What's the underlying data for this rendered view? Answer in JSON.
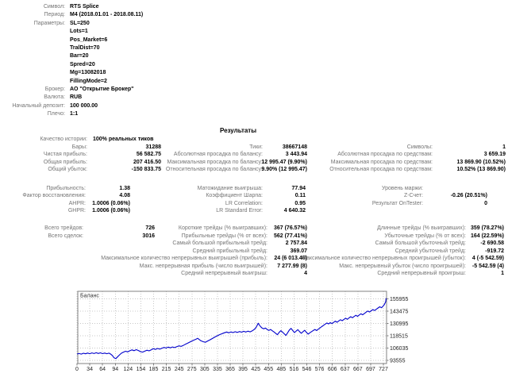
{
  "header": {
    "rows": [
      [
        "Символ:",
        "RTS Splice"
      ],
      [
        "Период:",
        "M4 (2018.01.01 - 2018.08.11)"
      ],
      [
        "Параметры:",
        "SL=250"
      ],
      [
        "",
        "Lots=1"
      ],
      [
        "",
        "Pos_Market=6"
      ],
      [
        "",
        "TralDist=70"
      ],
      [
        "",
        "Bar=20"
      ],
      [
        "",
        "Spred=20"
      ],
      [
        "",
        "Mg=13082018"
      ],
      [
        "",
        "FillingMode=2"
      ],
      [
        "Брокер:",
        "АО \"Открытие Брокер\""
      ],
      [
        "Валюта:",
        "RUB"
      ],
      [
        "Начальный депозит:",
        "100 000.00"
      ],
      [
        "Плечо:",
        "1:1"
      ]
    ]
  },
  "results": {
    "title": "Результаты",
    "sections": [
      {
        "rows": [
          {
            "l": [
              "Качество истории:",
              "100% реальных тиков",
              "left"
            ]
          },
          {
            "l": [
              "Бары:",
              "31288"
            ],
            "m": [
              "Тики:",
              "38667148"
            ],
            "r": [
              "Символы:",
              "1"
            ]
          },
          {
            "l": [
              "Чистая прибыль:",
              "56 582.75"
            ],
            "m": [
              "Абсолютная просадка по балансу:",
              "3 443.94"
            ],
            "r": [
              "Абсолютная просадка по средствам:",
              "3 659.19"
            ]
          },
          {
            "l": [
              "Общая прибыль:",
              "207 416.50"
            ],
            "m": [
              "Максимальная просадка по балансу:",
              "12 995.47 (9.90%)"
            ],
            "r": [
              "Максимальная просадка по средствам:",
              "13 869.90 (10.52%)"
            ]
          },
          {
            "l": [
              "Общий убыток:",
              "-150 833.75"
            ],
            "m": [
              "Относительная просадка по балансу:",
              "9.90% (12 995.47)"
            ],
            "r": [
              "Относительная просадка по средствам:",
              "10.52% (13 869.90)"
            ]
          }
        ]
      },
      {
        "rows": [
          {
            "l": [
              "Прибыльность:",
              "1.38"
            ],
            "m": [
              "Матожидание выигрыша:",
              "77.94"
            ],
            "r": [
              "Уровень маржи:",
              ""
            ]
          },
          {
            "l": [
              "Фактор восстановления:",
              "4.08"
            ],
            "m": [
              "Коэффициент Шарпа:",
              "0.11"
            ],
            "r": [
              "Z-Счет:",
              "-0.26 (20.51%)"
            ]
          },
          {
            "l": [
              "AHPR:",
              "1.0006 (0.06%)"
            ],
            "m": [
              "LR Correlation:",
              "0.95"
            ],
            "r": [
              "Результат OnTester:",
              "0"
            ]
          },
          {
            "l": [
              "GHPR:",
              "1.0006 (0.06%)"
            ],
            "m": [
              "LR Standard Error:",
              "4 640.32"
            ]
          }
        ]
      },
      {
        "rows": [
          {
            "l": [
              "Всего трейдов:",
              "726"
            ],
            "m": [
              "Короткие трейды (% выигравших):",
              "367 (76.57%)"
            ],
            "r": [
              "Длинные трейды (% выигравших):",
              "359 (78.27%)"
            ]
          },
          {
            "l": [
              "Всего сделок:",
              "3016"
            ],
            "m": [
              "Прибыльные трейды (% от всех):",
              "562 (77.41%)"
            ],
            "r": [
              "Убыточные трейды (% от всех):",
              "164 (22.59%)"
            ]
          },
          {
            "m": [
              "Самый большой прибыльный трейд:",
              "2 757.84"
            ],
            "r": [
              "Самый большой убыточный трейд:",
              "-2 690.58"
            ]
          },
          {
            "m": [
              "Средний прибыльный трейд:",
              "369.07"
            ],
            "r": [
              "Средний убыточный трейд:",
              "-919.72"
            ]
          },
          {
            "m": [
              "Максимальное количество непрерывных выигрышей (прибыль):",
              "24 (6 013.46)"
            ],
            "r": [
              "Максимальное количество непрерывных проигрышей (убыток):",
              "4 (-5 542.59)"
            ]
          },
          {
            "m": [
              "Макс. непрерывная прибыль (число выигрышей):",
              "7 277.99 (8)"
            ],
            "r": [
              "Макс. непрерывный убыток (число проигрышей):",
              "-5 542.59 (4)"
            ]
          },
          {
            "m": [
              "Средний непрерывный выигрыш:",
              "4"
            ],
            "r": [
              "Средний непрерывный проигрыш:",
              "1"
            ]
          }
        ]
      }
    ]
  },
  "chart_data": {
    "type": "line",
    "title": "Баланс",
    "legend": [
      "Баланс"
    ],
    "legend_position": "top-left-inside",
    "grid": true,
    "line_color": "#0000cc",
    "grid_color": "#c8c8c8",
    "border_color": "#808080",
    "x_ticks": [
      0,
      34,
      64,
      94,
      124,
      154,
      185,
      215,
      245,
      275,
      305,
      335,
      365,
      395,
      425,
      455,
      485,
      516,
      546,
      576,
      606,
      637,
      667,
      697,
      727
    ],
    "y_ticks": [
      93555,
      106035,
      118515,
      130995,
      143475,
      155955
    ],
    "xlim": [
      0,
      727
    ],
    "ylim": [
      90300,
      163600
    ],
    "series": [
      {
        "name": "Баланс",
        "points": [
          [
            0,
            100000
          ],
          [
            5,
            100500
          ],
          [
            10,
            99900
          ],
          [
            15,
            100800
          ],
          [
            20,
            100200
          ],
          [
            25,
            101000
          ],
          [
            30,
            100300
          ],
          [
            35,
            101100
          ],
          [
            40,
            100500
          ],
          [
            45,
            101300
          ],
          [
            50,
            100600
          ],
          [
            55,
            101200
          ],
          [
            60,
            100400
          ],
          [
            65,
            101000
          ],
          [
            70,
            100300
          ],
          [
            75,
            100900
          ],
          [
            79,
            99900
          ],
          [
            83,
            98500
          ],
          [
            87,
            96100
          ],
          [
            91,
            95300
          ],
          [
            95,
            97000
          ],
          [
            100,
            99200
          ],
          [
            104,
            100800
          ],
          [
            109,
            101900
          ],
          [
            114,
            102800
          ],
          [
            119,
            102200
          ],
          [
            124,
            103300
          ],
          [
            129,
            104200
          ],
          [
            134,
            103400
          ],
          [
            139,
            104400
          ],
          [
            144,
            103500
          ],
          [
            149,
            102400
          ],
          [
            154,
            101900
          ],
          [
            159,
            102900
          ],
          [
            164,
            103900
          ],
          [
            169,
            103200
          ],
          [
            174,
            104300
          ],
          [
            179,
            105400
          ],
          [
            184,
            104700
          ],
          [
            189,
            105600
          ],
          [
            194,
            104900
          ],
          [
            199,
            105800
          ],
          [
            204,
            106700
          ],
          [
            209,
            106000
          ],
          [
            214,
            107000
          ],
          [
            219,
            106300
          ],
          [
            224,
            107200
          ],
          [
            229,
            106500
          ],
          [
            234,
            107400
          ],
          [
            239,
            108300
          ],
          [
            244,
            107700
          ],
          [
            249,
            108700
          ],
          [
            254,
            109800
          ],
          [
            259,
            110900
          ],
          [
            264,
            112000
          ],
          [
            269,
            113100
          ],
          [
            274,
            114100
          ],
          [
            279,
            115000
          ],
          [
            283,
            115900
          ],
          [
            287,
            114600
          ],
          [
            291,
            113400
          ],
          [
            296,
            112500
          ],
          [
            301,
            111900
          ],
          [
            306,
            113000
          ],
          [
            311,
            114200
          ],
          [
            316,
            115400
          ],
          [
            321,
            116600
          ],
          [
            326,
            117800
          ],
          [
            331,
            118900
          ],
          [
            336,
            119900
          ],
          [
            341,
            120800
          ],
          [
            346,
            121600
          ],
          [
            351,
            122300
          ],
          [
            356,
            121500
          ],
          [
            361,
            122400
          ],
          [
            366,
            121700
          ],
          [
            371,
            122600
          ],
          [
            376,
            121900
          ],
          [
            381,
            122800
          ],
          [
            386,
            122100
          ],
          [
            391,
            123000
          ],
          [
            396,
            122300
          ],
          [
            401,
            123200
          ],
          [
            406,
            122500
          ],
          [
            411,
            123500
          ],
          [
            415,
            124700
          ],
          [
            419,
            126300
          ],
          [
            422,
            128600
          ],
          [
            425,
            131200
          ],
          [
            428,
            129200
          ],
          [
            431,
            127600
          ],
          [
            434,
            126400
          ],
          [
            438,
            125500
          ],
          [
            442,
            126300
          ],
          [
            446,
            124900
          ],
          [
            450,
            123900
          ],
          [
            454,
            124900
          ],
          [
            458,
            123600
          ],
          [
            462,
            122400
          ],
          [
            466,
            121000
          ],
          [
            470,
            119600
          ],
          [
            474,
            121900
          ],
          [
            478,
            123700
          ],
          [
            482,
            122200
          ],
          [
            486,
            120500
          ],
          [
            490,
            118800
          ],
          [
            494,
            121600
          ],
          [
            498,
            124300
          ],
          [
            502,
            126000
          ],
          [
            506,
            123800
          ],
          [
            510,
            121700
          ],
          [
            514,
            123300
          ],
          [
            518,
            124700
          ],
          [
            522,
            122700
          ],
          [
            526,
            121000
          ],
          [
            530,
            122600
          ],
          [
            534,
            124100
          ],
          [
            538,
            122000
          ],
          [
            542,
            120200
          ],
          [
            546,
            121500
          ],
          [
            550,
            122700
          ],
          [
            554,
            123800
          ],
          [
            558,
            124900
          ],
          [
            562,
            123800
          ],
          [
            566,
            125200
          ],
          [
            570,
            126500
          ],
          [
            574,
            127800
          ],
          [
            578,
            129100
          ],
          [
            582,
            130300
          ],
          [
            586,
            131500
          ],
          [
            590,
            130500
          ],
          [
            594,
            131800
          ],
          [
            598,
            130800
          ],
          [
            602,
            132100
          ],
          [
            606,
            133300
          ],
          [
            610,
            132200
          ],
          [
            614,
            133600
          ],
          [
            618,
            134800
          ],
          [
            622,
            133800
          ],
          [
            626,
            135100
          ],
          [
            630,
            136300
          ],
          [
            634,
            135200
          ],
          [
            638,
            136600
          ],
          [
            642,
            137800
          ],
          [
            646,
            136800
          ],
          [
            650,
            138100
          ],
          [
            654,
            139300
          ],
          [
            658,
            138200
          ],
          [
            662,
            139600
          ],
          [
            666,
            140800
          ],
          [
            670,
            139800
          ],
          [
            674,
            141100
          ],
          [
            678,
            142400
          ],
          [
            682,
            143600
          ],
          [
            686,
            142600
          ],
          [
            690,
            143900
          ],
          [
            694,
            145100
          ],
          [
            698,
            144100
          ],
          [
            702,
            145400
          ],
          [
            706,
            146700
          ],
          [
            710,
            147900
          ],
          [
            714,
            146900
          ],
          [
            718,
            148600
          ],
          [
            721,
            150300
          ],
          [
            724,
            153000
          ],
          [
            726,
            156583
          ]
        ]
      }
    ]
  }
}
